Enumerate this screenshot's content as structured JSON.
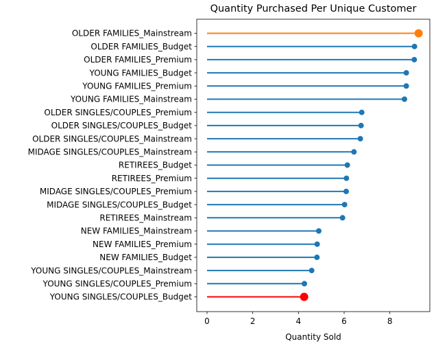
{
  "chart_data": {
    "type": "lollipop",
    "orientation": "horizontal",
    "title": "Quantity Purchased Per Unique Customer",
    "xlabel": "Quantity Sold",
    "ylabel": "",
    "xlim": [
      -0.45,
      9.75
    ],
    "xticks": [
      0,
      2,
      4,
      6,
      8
    ],
    "grid": false,
    "default_color": "#1f77b4",
    "categories": [
      "OLDER FAMILIES_Mainstream",
      "OLDER FAMILIES_Budget",
      "OLDER FAMILIES_Premium",
      "YOUNG FAMILIES_Budget",
      "YOUNG FAMILIES_Premium",
      "YOUNG FAMILIES_Mainstream",
      "OLDER SINGLES/COUPLES_Premium",
      "OLDER SINGLES/COUPLES_Budget",
      "OLDER SINGLES/COUPLES_Mainstream",
      "MIDAGE SINGLES/COUPLES_Mainstream",
      "RETIREES_Budget",
      "RETIREES_Premium",
      "MIDAGE SINGLES/COUPLES_Premium",
      "MIDAGE SINGLES/COUPLES_Budget",
      "RETIREES_Mainstream",
      "NEW FAMILIES_Mainstream",
      "NEW FAMILIES_Premium",
      "NEW FAMILIES_Budget",
      "YOUNG SINGLES/COUPLES_Mainstream",
      "YOUNG SINGLES/COUPLES_Premium",
      "YOUNG SINGLES/COUPLES_Budget"
    ],
    "values": [
      9.26,
      9.08,
      9.07,
      8.72,
      8.72,
      8.64,
      6.77,
      6.74,
      6.71,
      6.43,
      6.14,
      6.1,
      6.09,
      6.02,
      5.93,
      4.89,
      4.82,
      4.81,
      4.58,
      4.26,
      4.25
    ],
    "highlight": [
      {
        "category": "OLDER FAMILIES_Mainstream",
        "color": "#ff7f0e"
      },
      {
        "category": "YOUNG SINGLES/COUPLES_Budget",
        "color": "#ff0000"
      }
    ]
  }
}
